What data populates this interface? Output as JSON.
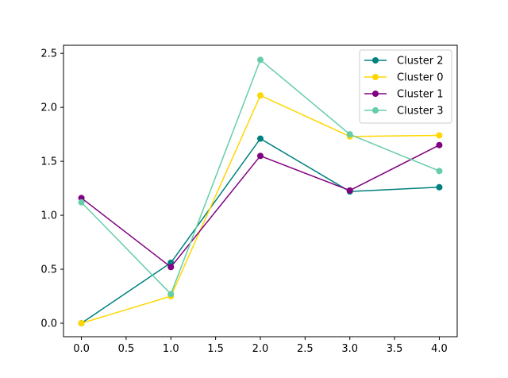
{
  "chart_data": {
    "type": "line",
    "title": "",
    "xlabel": "",
    "ylabel": "",
    "x": [
      0.0,
      1.0,
      2.0,
      3.0,
      4.0
    ],
    "xlim": [
      -0.2,
      4.2
    ],
    "ylim": [
      -0.125,
      2.575
    ],
    "xticks": [
      0.0,
      0.5,
      1.0,
      1.5,
      2.0,
      2.5,
      3.0,
      3.5,
      4.0
    ],
    "xtick_labels": [
      "0.0",
      "0.5",
      "1.0",
      "1.5",
      "2.0",
      "2.5",
      "3.0",
      "3.5",
      "4.0"
    ],
    "yticks": [
      0.0,
      0.5,
      1.0,
      1.5,
      2.0,
      2.5
    ],
    "ytick_labels": [
      "0.0",
      "0.5",
      "1.0",
      "1.5",
      "2.0",
      "2.5"
    ],
    "grid": false,
    "legend_position": "top-right",
    "series": [
      {
        "name": "Cluster 2",
        "color": "#008080",
        "values": [
          0.0,
          0.56,
          1.71,
          1.22,
          1.26
        ]
      },
      {
        "name": "Cluster 0",
        "color": "#ffd700",
        "values": [
          0.0,
          0.25,
          2.11,
          1.73,
          1.74
        ]
      },
      {
        "name": "Cluster 1",
        "color": "#800080",
        "values": [
          1.16,
          0.52,
          1.55,
          1.23,
          1.65
        ]
      },
      {
        "name": "Cluster 3",
        "color": "#66cdaa",
        "values": [
          1.12,
          0.27,
          2.44,
          1.75,
          1.41
        ]
      }
    ]
  }
}
